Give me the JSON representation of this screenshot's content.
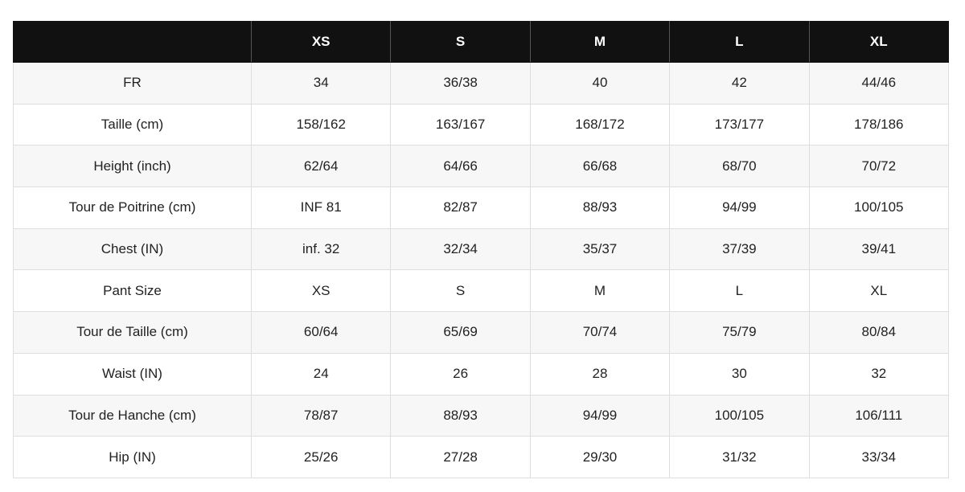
{
  "table": {
    "headers": [
      "",
      "XS",
      "S",
      "M",
      "L",
      "XL"
    ],
    "rows": [
      [
        "FR",
        "34",
        "36/38",
        "40",
        "42",
        "44/46"
      ],
      [
        "Taille (cm)",
        "158/162",
        "163/167",
        "168/172",
        "173/177",
        "178/186"
      ],
      [
        "Height (inch)",
        "62/64",
        "64/66",
        "66/68",
        "68/70",
        "70/72"
      ],
      [
        "Tour de Poitrine (cm)",
        "INF 81",
        "82/87",
        "88/93",
        "94/99",
        "100/105"
      ],
      [
        "Chest (IN)",
        "inf. 32",
        "32/34",
        "35/37",
        "37/39",
        "39/41"
      ],
      [
        "Pant Size",
        "XS",
        "S",
        "M",
        "L",
        "XL"
      ],
      [
        "Tour de Taille (cm)",
        "60/64",
        "65/69",
        "70/74",
        "75/79",
        "80/84"
      ],
      [
        "Waist (IN)",
        "24",
        "26",
        "28",
        "30",
        "32"
      ],
      [
        "Tour de Hanche (cm)",
        "78/87",
        "88/93",
        "94/99",
        "100/105",
        "106/111"
      ],
      [
        "Hip (IN)",
        "25/26",
        "27/28",
        "29/30",
        "31/32",
        "33/34"
      ]
    ]
  },
  "colors": {
    "header_bg": "#111111",
    "header_text": "#ffffff",
    "stripe": "#f7f7f7",
    "border": "#dedede"
  }
}
